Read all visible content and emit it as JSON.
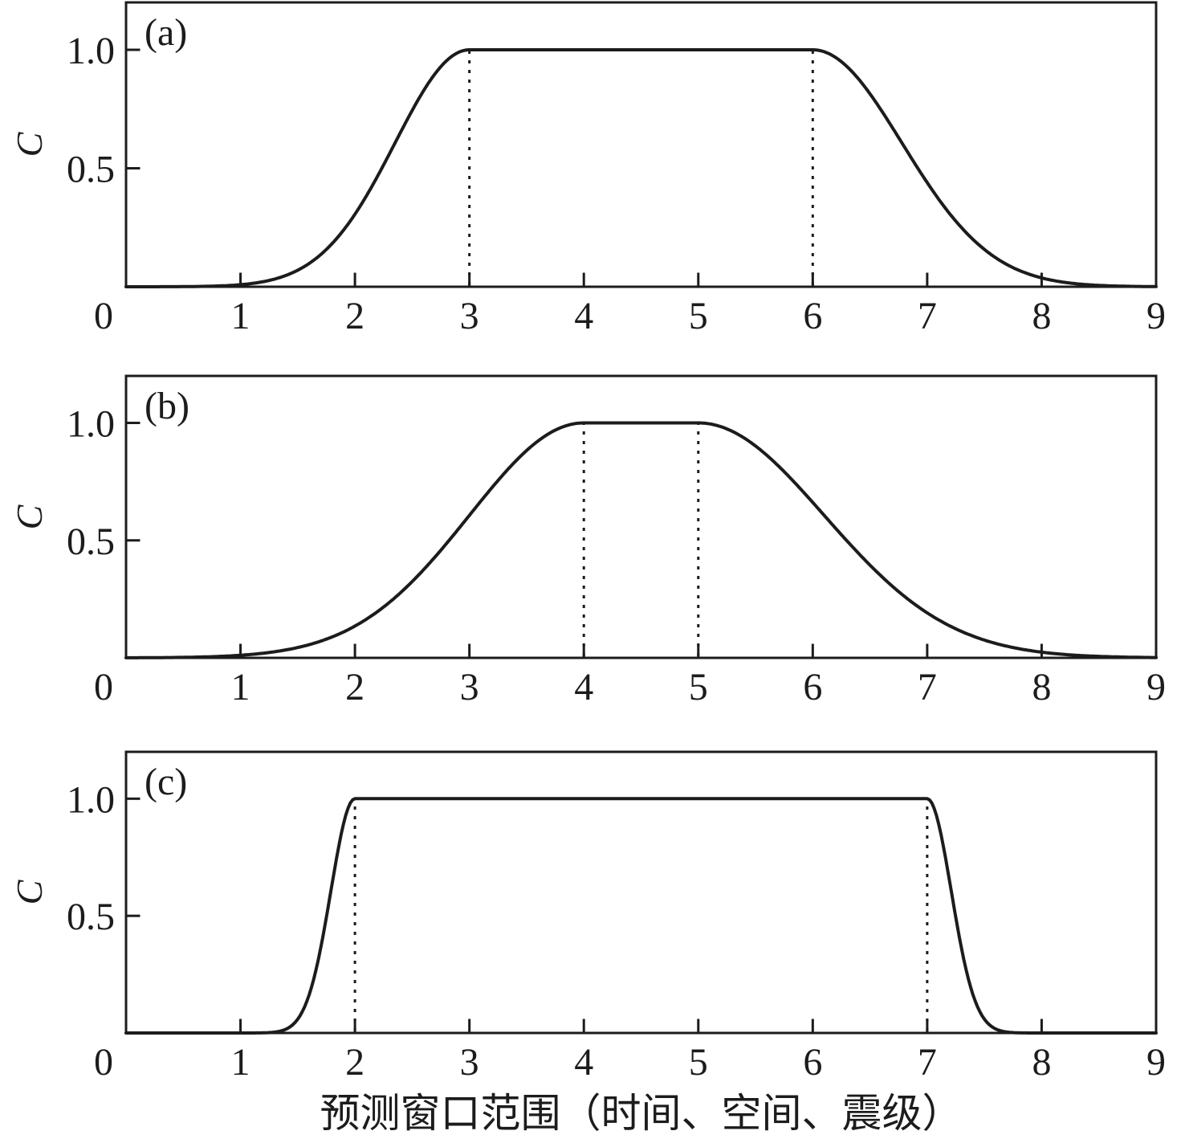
{
  "figure": {
    "xlabel": "预测窗口范围（时间、空间、震级）",
    "background": "#ffffff",
    "line_color": "#1c1c1c"
  },
  "chart_data": [
    {
      "type": "line",
      "panel_label": "(a)",
      "ylabel": "C",
      "xlim": [
        0,
        9
      ],
      "ylim": [
        0,
        1.2
      ],
      "xticks": [
        0,
        1,
        2,
        3,
        4,
        5,
        6,
        7,
        8,
        9
      ],
      "yticks": [
        {
          "value": 0.5,
          "label": "0.5"
        },
        {
          "value": 1.0,
          "label": "1.0"
        }
      ],
      "grid": false,
      "legend": false,
      "curve": {
        "shape": "plateau-with-gaussian-flanks",
        "peak": 1.0,
        "plateau_start": 3,
        "plateau_end": 6,
        "sigma_left": 0.65,
        "sigma_right": 0.78
      },
      "dotted_guides_x": [
        3,
        6
      ],
      "key_points": [
        [
          0,
          0
        ],
        [
          1,
          0.01
        ],
        [
          1.5,
          0.07
        ],
        [
          2,
          0.31
        ],
        [
          2.5,
          0.75
        ],
        [
          3,
          1.0
        ],
        [
          6,
          1.0
        ],
        [
          6.5,
          0.82
        ],
        [
          7,
          0.46
        ],
        [
          7.5,
          0.16
        ],
        [
          8,
          0.03
        ],
        [
          9,
          0
        ]
      ]
    },
    {
      "type": "line",
      "panel_label": "(b)",
      "ylabel": "C",
      "xlim": [
        0,
        9
      ],
      "ylim": [
        0,
        1.2
      ],
      "xticks": [
        0,
        1,
        2,
        3,
        4,
        5,
        6,
        7,
        8,
        9
      ],
      "yticks": [
        {
          "value": 0.5,
          "label": "0.5"
        },
        {
          "value": 1.0,
          "label": "1.0"
        }
      ],
      "grid": false,
      "legend": false,
      "curve": {
        "shape": "plateau-with-gaussian-flanks",
        "peak": 1.0,
        "plateau_start": 4,
        "plateau_end": 5,
        "sigma_left": 1.0,
        "sigma_right": 1.1
      },
      "dotted_guides_x": [
        4,
        5
      ],
      "key_points": [
        [
          0,
          0
        ],
        [
          1,
          0.01
        ],
        [
          2,
          0.14
        ],
        [
          3,
          0.61
        ],
        [
          4,
          1.0
        ],
        [
          5,
          1.0
        ],
        [
          6,
          0.66
        ],
        [
          7,
          0.19
        ],
        [
          8,
          0.02
        ],
        [
          9,
          0
        ]
      ]
    },
    {
      "type": "line",
      "panel_label": "(c)",
      "ylabel": "C",
      "xlim": [
        0,
        9
      ],
      "ylim": [
        0,
        1.2
      ],
      "xticks": [
        0,
        1,
        2,
        3,
        4,
        5,
        6,
        7,
        8,
        9
      ],
      "yticks": [
        {
          "value": 0.5,
          "label": "0.5"
        },
        {
          "value": 1.0,
          "label": "1.0"
        }
      ],
      "grid": false,
      "legend": false,
      "curve": {
        "shape": "plateau-with-gaussian-flanks",
        "peak": 1.0,
        "plateau_start": 2,
        "plateau_end": 7,
        "sigma_left": 0.21,
        "sigma_right": 0.21
      },
      "dotted_guides_x": [
        2,
        7
      ],
      "key_points": [
        [
          0,
          0
        ],
        [
          1,
          0
        ],
        [
          1.5,
          0.06
        ],
        [
          1.75,
          0.49
        ],
        [
          2,
          1.0
        ],
        [
          7,
          1.0
        ],
        [
          7.25,
          0.49
        ],
        [
          7.5,
          0.06
        ],
        [
          8,
          0
        ],
        [
          9,
          0
        ]
      ]
    }
  ]
}
